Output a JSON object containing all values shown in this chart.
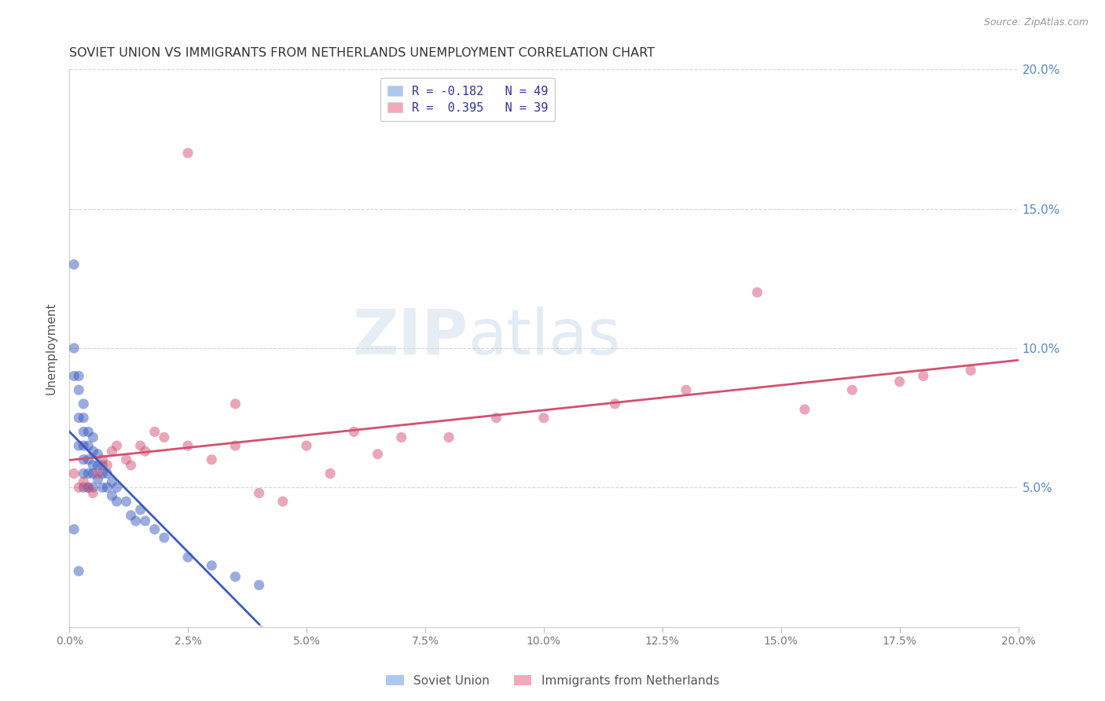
{
  "title": "SOVIET UNION VS IMMIGRANTS FROM NETHERLANDS UNEMPLOYMENT CORRELATION CHART",
  "source": "Source: ZipAtlas.com",
  "ylabel": "Unemployment",
  "xlim": [
    0.0,
    0.2
  ],
  "ylim": [
    0.0,
    0.2
  ],
  "xtick_labels": [
    "0.0%",
    "2.5%",
    "5.0%",
    "7.5%",
    "10.0%",
    "12.5%",
    "15.0%",
    "17.5%",
    "20.0%"
  ],
  "xtick_vals": [
    0.0,
    0.025,
    0.05,
    0.075,
    0.1,
    0.125,
    0.15,
    0.175,
    0.2
  ],
  "ytick_labels": [
    "5.0%",
    "10.0%",
    "15.0%",
    "20.0%"
  ],
  "ytick_vals": [
    0.05,
    0.1,
    0.15,
    0.2
  ],
  "legend_entries": [
    {
      "label": "R = -0.182   N = 49",
      "color": "#adc8f0"
    },
    {
      "label": "R =  0.395   N = 39",
      "color": "#f5a8bc"
    }
  ],
  "legend_bottom": [
    {
      "label": "Soviet Union",
      "color": "#adc8f0"
    },
    {
      "label": "Immigrants from Netherlands",
      "color": "#f5a8bc"
    }
  ],
  "watermark_zip": "ZIP",
  "watermark_atlas": "atlas",
  "soviet_union_x": [
    0.001,
    0.001,
    0.001,
    0.001,
    0.002,
    0.002,
    0.002,
    0.002,
    0.002,
    0.003,
    0.003,
    0.003,
    0.003,
    0.003,
    0.003,
    0.003,
    0.004,
    0.004,
    0.004,
    0.004,
    0.004,
    0.005,
    0.005,
    0.005,
    0.005,
    0.005,
    0.006,
    0.006,
    0.006,
    0.007,
    0.007,
    0.007,
    0.008,
    0.008,
    0.009,
    0.009,
    0.01,
    0.01,
    0.012,
    0.013,
    0.014,
    0.015,
    0.016,
    0.018,
    0.02,
    0.025,
    0.03,
    0.035,
    0.04
  ],
  "soviet_union_y": [
    0.13,
    0.1,
    0.09,
    0.035,
    0.09,
    0.085,
    0.075,
    0.065,
    0.02,
    0.08,
    0.075,
    0.07,
    0.065,
    0.06,
    0.055,
    0.05,
    0.07,
    0.065,
    0.06,
    0.055,
    0.05,
    0.068,
    0.063,
    0.058,
    0.055,
    0.05,
    0.062,
    0.058,
    0.053,
    0.058,
    0.055,
    0.05,
    0.055,
    0.05,
    0.052,
    0.047,
    0.05,
    0.045,
    0.045,
    0.04,
    0.038,
    0.042,
    0.038,
    0.035,
    0.032,
    0.025,
    0.022,
    0.018,
    0.015
  ],
  "netherlands_x": [
    0.001,
    0.002,
    0.003,
    0.004,
    0.005,
    0.006,
    0.007,
    0.008,
    0.009,
    0.01,
    0.012,
    0.013,
    0.015,
    0.016,
    0.018,
    0.02,
    0.025,
    0.03,
    0.035,
    0.04,
    0.05,
    0.055,
    0.06,
    0.065,
    0.07,
    0.08,
    0.09,
    0.1,
    0.115,
    0.13,
    0.145,
    0.155,
    0.165,
    0.175,
    0.18,
    0.19,
    0.025,
    0.035,
    0.045
  ],
  "netherlands_y": [
    0.055,
    0.05,
    0.052,
    0.05,
    0.048,
    0.055,
    0.06,
    0.058,
    0.063,
    0.065,
    0.06,
    0.058,
    0.065,
    0.063,
    0.07,
    0.068,
    0.065,
    0.06,
    0.065,
    0.048,
    0.065,
    0.055,
    0.07,
    0.062,
    0.068,
    0.068,
    0.075,
    0.075,
    0.08,
    0.085,
    0.12,
    0.078,
    0.085,
    0.088,
    0.09,
    0.092,
    0.17,
    0.08,
    0.045
  ],
  "soviet_trendline_color": "#3a5bbf",
  "soviet_trendline_dashed_color": "#aaaacc",
  "netherlands_trendline_color": "#d45070",
  "dot_alpha": 0.5,
  "dot_size": 90,
  "background_color": "#ffffff",
  "grid_color": "#cccccc",
  "title_color": "#333333",
  "axis_label_color": "#555555",
  "right_ytick_color": "#5588cc"
}
